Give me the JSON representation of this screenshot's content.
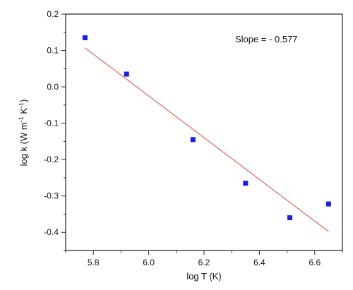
{
  "chart_data": {
    "type": "scatter",
    "title": "",
    "xlabel": "log T (K)",
    "ylabel_parts": [
      "log k (W m",
      "-1",
      " K",
      "-1",
      ")"
    ],
    "annotation": "Slope = - 0.577",
    "xlim": [
      5.7,
      6.7
    ],
    "ylim": [
      -0.45,
      0.2
    ],
    "x_ticks": [
      5.8,
      6.0,
      6.2,
      6.4,
      6.6
    ],
    "x_tick_labels": [
      "5.8",
      "6.0",
      "6.2",
      "6.4",
      "6.6"
    ],
    "y_ticks": [
      -0.4,
      -0.3,
      -0.2,
      -0.1,
      0.0,
      0.1,
      0.2
    ],
    "y_tick_labels": [
      "-0.4",
      "-0.3",
      "-0.2",
      "-0.1",
      "0.0",
      "0.1",
      "0.2"
    ],
    "grid": false,
    "series": [
      {
        "points": [
          {
            "x": 5.77,
            "y": 0.135
          },
          {
            "x": 5.92,
            "y": 0.035
          },
          {
            "x": 6.16,
            "y": -0.145
          },
          {
            "x": 6.35,
            "y": -0.265
          },
          {
            "x": 6.51,
            "y": -0.36
          },
          {
            "x": 6.65,
            "y": -0.322
          }
        ],
        "color": "#1a1aff"
      }
    ],
    "fit_line": {
      "x": [
        5.77,
        6.65
      ],
      "y": [
        0.107,
        -0.398
      ],
      "color": "#e05555"
    }
  }
}
